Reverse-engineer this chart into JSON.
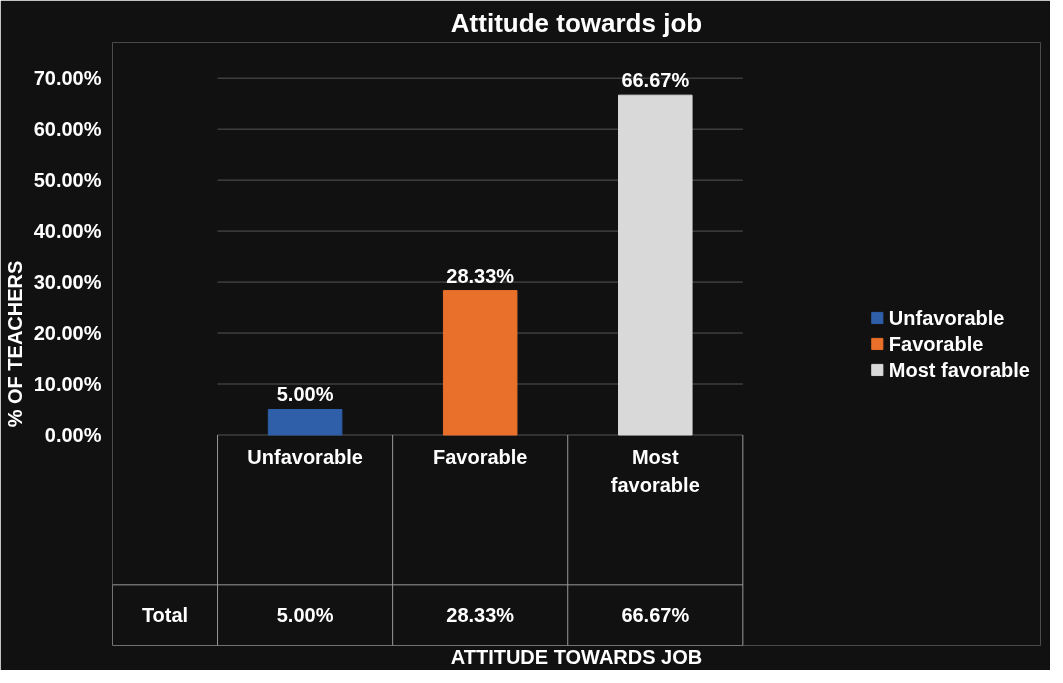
{
  "chart_data": {
    "type": "bar",
    "title": "Attitude towards job",
    "ylabel": "% OF TEACHERS",
    "categories": [
      "Unfavorable",
      "Favorable",
      "Most favorable"
    ],
    "series": [
      {
        "name": "Unfavorable",
        "color": "#2e5fa8",
        "values": [
          5.0,
          null,
          null
        ],
        "value_labels": [
          "5.00%",
          null,
          null
        ]
      },
      {
        "name": "Favorable",
        "color": "#e8702a",
        "values": [
          null,
          28.33,
          null
        ],
        "value_labels": [
          null,
          "28.33%",
          null
        ]
      },
      {
        "name": "Most favorable",
        "color": "#d9d9d9",
        "values": [
          null,
          null,
          66.67
        ],
        "value_labels": [
          null,
          null,
          "66.67%"
        ]
      }
    ],
    "annotations": [
      "Total",
      "ATTITUDE TOWARDS JOB"
    ],
    "ylim": [
      0,
      70
    ],
    "yticks": [
      {
        "value": 0,
        "label": "0.00%"
      },
      {
        "value": 10,
        "label": "10.00%"
      },
      {
        "value": 20,
        "label": "20.00%"
      },
      {
        "value": 30,
        "label": "30.00%"
      },
      {
        "value": 40,
        "label": "40.00%"
      },
      {
        "value": 50,
        "label": "50.00%"
      },
      {
        "value": 60,
        "label": "60.00%"
      },
      {
        "value": 70,
        "label": "70.00%"
      }
    ],
    "grid": "y",
    "legend": "right"
  }
}
